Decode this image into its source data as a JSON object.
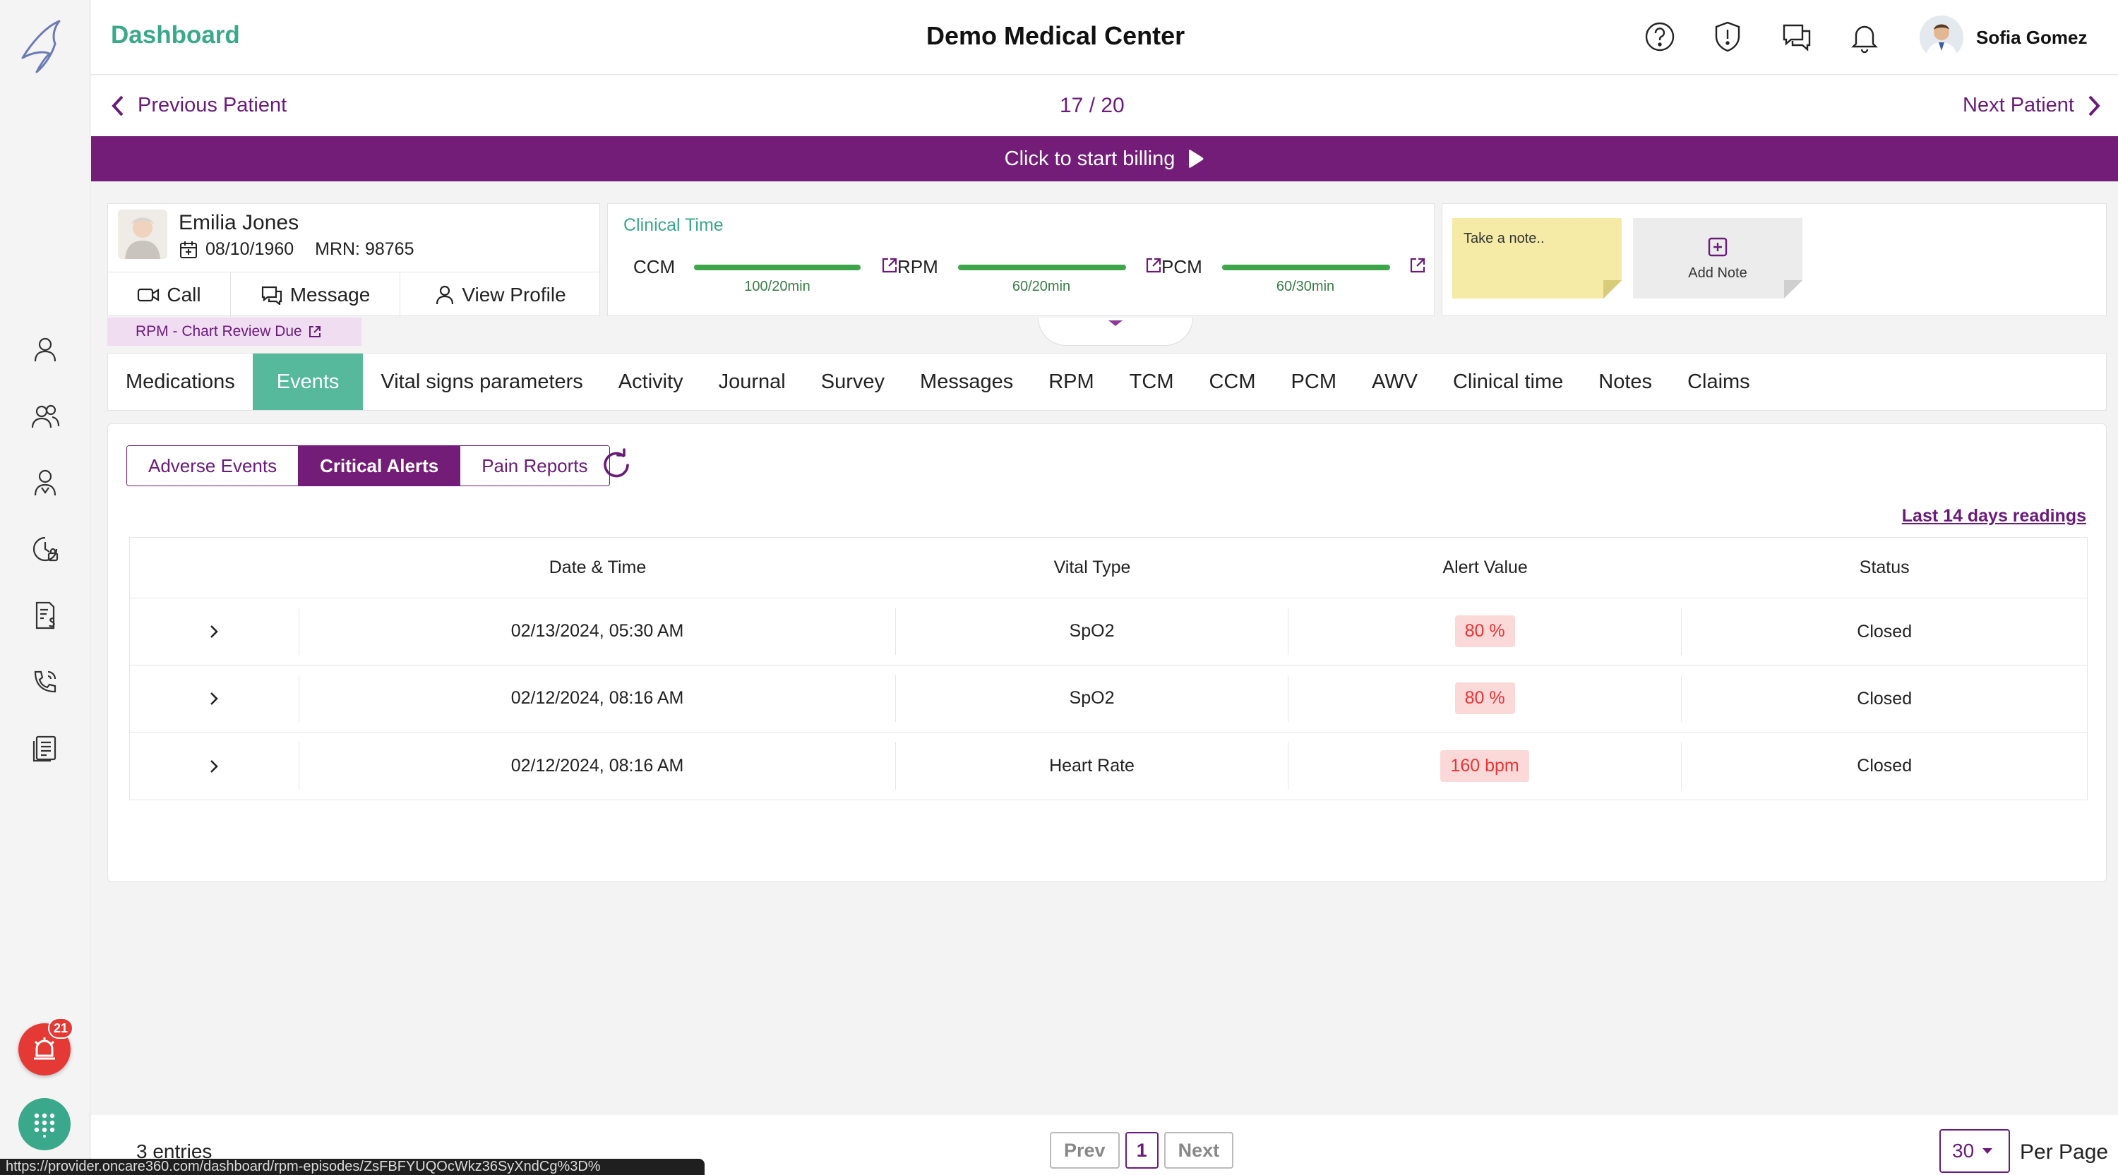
{
  "header": {
    "title": "Dashboard",
    "center_name": "Demo Medical Center",
    "user_name": "Sofia Gomez"
  },
  "patient_nav": {
    "prev_label": "Previous Patient",
    "counter": "17 / 20",
    "next_label": "Next Patient"
  },
  "billing": {
    "label": "Click to start billing"
  },
  "patient": {
    "name": "Emilia Jones",
    "dob": "08/10/1960",
    "mrn": "MRN: 98765",
    "actions": {
      "call": "Call",
      "message": "Message",
      "view_profile": "View Profile"
    },
    "due_tag": "RPM - Chart Review Due"
  },
  "clinical_time": {
    "title": "Clinical Time",
    "items": [
      {
        "label": "CCM",
        "value": "100/20min",
        "progress": 1.0
      },
      {
        "label": "RPM",
        "value": "60/20min",
        "progress": 1.0
      },
      {
        "label": "PCM",
        "value": "60/30min",
        "progress": 1.0
      }
    ]
  },
  "notes": {
    "sticky_placeholder": "Take a note..",
    "add_note": "Add Note"
  },
  "sidebar": {
    "alarm_count": "21"
  },
  "tabs": [
    {
      "label": "Medications"
    },
    {
      "label": "Events",
      "active": true
    },
    {
      "label": "Vital signs parameters"
    },
    {
      "label": "Activity"
    },
    {
      "label": "Journal"
    },
    {
      "label": "Survey"
    },
    {
      "label": "Messages"
    },
    {
      "label": "RPM"
    },
    {
      "label": "TCM"
    },
    {
      "label": "CCM"
    },
    {
      "label": "PCM"
    },
    {
      "label": "AWV"
    },
    {
      "label": "Clinical time"
    },
    {
      "label": "Notes"
    },
    {
      "label": "Claims"
    }
  ],
  "events": {
    "segments": [
      {
        "label": "Adverse Events"
      },
      {
        "label": "Critical Alerts",
        "active": true
      },
      {
        "label": "Pain Reports"
      }
    ],
    "last_link": "Last 14 days readings",
    "columns": [
      "Date & Time",
      "Vital Type",
      "Alert Value",
      "Status"
    ],
    "rows": [
      {
        "date": "02/13/2024, 05:30 AM",
        "vital": "SpO2",
        "value": "80 %",
        "status": "Closed"
      },
      {
        "date": "02/12/2024, 08:16 AM",
        "vital": "SpO2",
        "value": "80 %",
        "status": "Closed"
      },
      {
        "date": "02/12/2024, 08:16 AM",
        "vital": "Heart Rate",
        "value": "160 bpm",
        "status": "Closed"
      }
    ]
  },
  "footer": {
    "entries": "3 entries",
    "prev": "Prev",
    "page": "1",
    "next": "Next",
    "per_page_value": "30",
    "per_page_label": "Per Page"
  },
  "status_url": "https://provider.oncare360.com/dashboard/rpm-episodes/ZsFBFYUQOcWkz36SyXndCg%3D%",
  "colors": {
    "accent": "#731d78",
    "teal": "#56b99c",
    "alert": "#e53935"
  }
}
